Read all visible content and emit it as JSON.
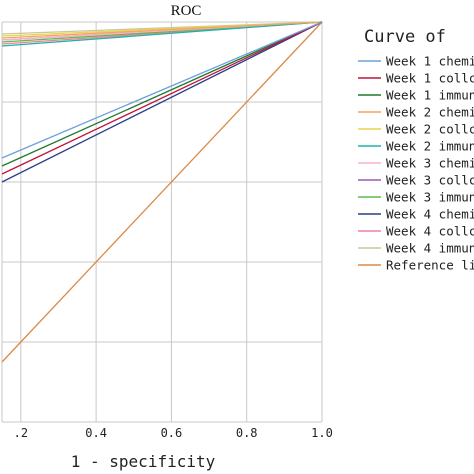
{
  "chart_data": {
    "type": "line",
    "title": "ROC",
    "xlabel": "1 - specificity",
    "ylabel": "",
    "xlim": [
      0.15,
      1.0
    ],
    "ylim": [
      0.0,
      1.0
    ],
    "grid": true,
    "x_ticks": [
      0.2,
      0.4,
      0.6,
      0.8,
      1.0
    ],
    "x_tick_labels": [
      ".2",
      "0.4",
      "0.6",
      "0.8",
      "1.0"
    ],
    "y_ticks": [
      0.0,
      0.2,
      0.4,
      0.6,
      0.8,
      1.0
    ],
    "legend": {
      "title": "Curve of",
      "placement": "right"
    },
    "series": [
      {
        "name": "Week 1 chemi",
        "color": "#6ca0dc",
        "points": [
          [
            0,
            0
          ],
          [
            0.15,
            0.66
          ],
          [
            1,
            1
          ]
        ]
      },
      {
        "name": "Week 1 collc",
        "color": "#c0143c",
        "points": [
          [
            0,
            0
          ],
          [
            0.15,
            0.62
          ],
          [
            1,
            1
          ]
        ]
      },
      {
        "name": "Week 1 immun",
        "color": "#1f7a2e",
        "points": [
          [
            0,
            0
          ],
          [
            0.15,
            0.64
          ],
          [
            1,
            1
          ]
        ]
      },
      {
        "name": "Week 2 chemi",
        "color": "#f4a460",
        "points": [
          [
            0,
            0
          ],
          [
            0.15,
            0.96
          ],
          [
            1,
            1
          ]
        ]
      },
      {
        "name": "Week 2 collc",
        "color": "#e8d44d",
        "points": [
          [
            0,
            0
          ],
          [
            0.15,
            0.965
          ],
          [
            1,
            1
          ]
        ]
      },
      {
        "name": "Week 2 immun",
        "color": "#20b2aa",
        "points": [
          [
            0,
            0
          ],
          [
            0.15,
            0.94
          ],
          [
            1,
            1
          ]
        ]
      },
      {
        "name": "Week 3 chemi",
        "color": "#f8b4c8",
        "points": [
          [
            0,
            0
          ],
          [
            0.15,
            0.955
          ],
          [
            1,
            1
          ]
        ]
      },
      {
        "name": "Week 3 collc",
        "color": "#9b59b6",
        "points": [
          [
            0,
            0
          ],
          [
            0.15,
            0.955
          ],
          [
            1,
            1
          ]
        ]
      },
      {
        "name": "Week 3 immun",
        "color": "#5dbb4a",
        "points": [
          [
            0,
            0
          ],
          [
            0.15,
            0.95
          ],
          [
            1,
            1
          ]
        ]
      },
      {
        "name": "Week 4 chemi",
        "color": "#2c3e8c",
        "points": [
          [
            0,
            0
          ],
          [
            0.15,
            0.6
          ],
          [
            1,
            1
          ]
        ]
      },
      {
        "name": "Week 4 collc",
        "color": "#f080a0",
        "points": [
          [
            0,
            0
          ],
          [
            0.15,
            0.945
          ],
          [
            1,
            1
          ]
        ]
      },
      {
        "name": "Week 4 immun",
        "color": "#c8c89a",
        "points": [
          [
            0,
            0
          ],
          [
            0.15,
            0.97
          ],
          [
            1,
            1
          ]
        ]
      },
      {
        "name": "Reference li",
        "color": "#d98c4a",
        "points": [
          [
            0,
            0
          ],
          [
            1,
            1
          ]
        ]
      }
    ]
  }
}
